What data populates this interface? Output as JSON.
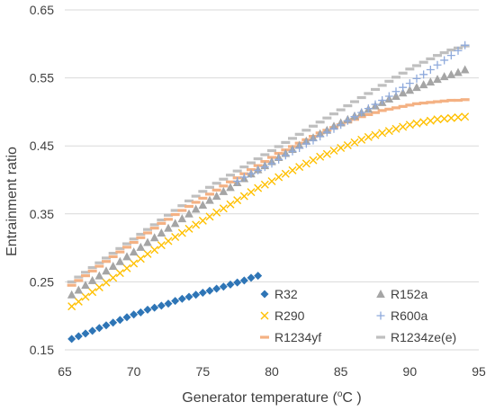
{
  "chart_data": {
    "type": "scatter",
    "title": "",
    "xlabel": "Generator temperature (",
    "xlabel_sup": "o",
    "xlabel_tail": "C )",
    "ylabel": "Entrainment ratio",
    "xlim": [
      65,
      95
    ],
    "ylim": [
      0.15,
      0.65
    ],
    "x_ticks": [
      "65",
      "70",
      "75",
      "80",
      "85",
      "90",
      "95"
    ],
    "y_ticks": [
      "0.15",
      "0.25",
      "0.35",
      "0.45",
      "0.55",
      "0.65"
    ],
    "grid": "horizontal",
    "legend_position": "inside-bottom-right",
    "series": [
      {
        "name": "R32",
        "marker": "diamond",
        "color": "#2e75b6",
        "x_start": 65.5,
        "x_step": 0.5,
        "values": [
          0.166,
          0.17,
          0.174,
          0.178,
          0.182,
          0.186,
          0.19,
          0.194,
          0.198,
          0.202,
          0.205,
          0.209,
          0.212,
          0.215,
          0.218,
          0.222,
          0.225,
          0.228,
          0.231,
          0.234,
          0.237,
          0.24,
          0.243,
          0.246,
          0.249,
          0.252,
          0.256,
          0.259
        ]
      },
      {
        "name": "R152a",
        "marker": "triangle",
        "color": "#a5a5a5",
        "x_start": 65.5,
        "x_step": 0.5,
        "values": [
          0.231,
          0.238,
          0.245,
          0.252,
          0.259,
          0.266,
          0.273,
          0.28,
          0.287,
          0.294,
          0.301,
          0.308,
          0.315,
          0.322,
          0.329,
          0.336,
          0.343,
          0.35,
          0.357,
          0.363,
          0.37,
          0.376,
          0.383,
          0.389,
          0.396,
          0.402,
          0.409,
          0.415,
          0.421,
          0.427,
          0.433,
          0.439,
          0.445,
          0.451,
          0.457,
          0.462,
          0.468,
          0.473,
          0.479,
          0.484,
          0.489,
          0.494,
          0.499,
          0.504,
          0.509,
          0.514,
          0.519,
          0.523,
          0.528,
          0.532,
          0.536,
          0.54,
          0.544,
          0.548,
          0.552,
          0.555,
          0.558,
          0.562
        ]
      },
      {
        "name": "R290",
        "marker": "x",
        "color": "#ffc000",
        "x_start": 65.5,
        "x_step": 0.5,
        "values": [
          0.214,
          0.221,
          0.228,
          0.235,
          0.242,
          0.249,
          0.256,
          0.263,
          0.27,
          0.277,
          0.284,
          0.291,
          0.297,
          0.304,
          0.31,
          0.316,
          0.322,
          0.328,
          0.334,
          0.34,
          0.346,
          0.352,
          0.358,
          0.364,
          0.37,
          0.376,
          0.382,
          0.388,
          0.393,
          0.398,
          0.404,
          0.409,
          0.414,
          0.419,
          0.424,
          0.429,
          0.434,
          0.438,
          0.443,
          0.447,
          0.451,
          0.455,
          0.459,
          0.463,
          0.466,
          0.469,
          0.472,
          0.475,
          0.478,
          0.481,
          0.483,
          0.485,
          0.487,
          0.489,
          0.49,
          0.491,
          0.492,
          0.493
        ]
      },
      {
        "name": "R600a",
        "marker": "plus",
        "color": "#8faadc",
        "x_start": 77.5,
        "x_step": 0.5,
        "values": [
          0.398,
          0.404,
          0.409,
          0.414,
          0.419,
          0.424,
          0.43,
          0.436,
          0.442,
          0.447,
          0.453,
          0.458,
          0.464,
          0.47,
          0.475,
          0.481,
          0.487,
          0.493,
          0.499,
          0.505,
          0.511,
          0.517,
          0.523,
          0.53,
          0.536,
          0.542,
          0.549,
          0.555,
          0.562,
          0.569,
          0.576,
          0.583,
          0.59,
          0.598
        ]
      },
      {
        "name": "R1234yf",
        "marker": "dash",
        "color": "#f4b183",
        "x_start": 65.5,
        "x_step": 0.5,
        "values": [
          0.245,
          0.252,
          0.259,
          0.266,
          0.273,
          0.28,
          0.287,
          0.294,
          0.301,
          0.308,
          0.315,
          0.322,
          0.329,
          0.336,
          0.342,
          0.349,
          0.355,
          0.361,
          0.367,
          0.373,
          0.379,
          0.385,
          0.391,
          0.397,
          0.403,
          0.409,
          0.415,
          0.421,
          0.427,
          0.433,
          0.439,
          0.444,
          0.449,
          0.454,
          0.459,
          0.464,
          0.469,
          0.473,
          0.477,
          0.481,
          0.485,
          0.489,
          0.493,
          0.496,
          0.499,
          0.502,
          0.504,
          0.506,
          0.508,
          0.51,
          0.512,
          0.513,
          0.514,
          0.515,
          0.516,
          0.517,
          0.517,
          0.518
        ]
      },
      {
        "name": "R1234ze(e)",
        "marker": "dash",
        "color": "#bfbfbf",
        "x_start": 65.5,
        "x_step": 0.5,
        "values": [
          0.25,
          0.257,
          0.264,
          0.271,
          0.278,
          0.285,
          0.292,
          0.299,
          0.306,
          0.313,
          0.32,
          0.327,
          0.334,
          0.341,
          0.348,
          0.355,
          0.362,
          0.369,
          0.376,
          0.383,
          0.389,
          0.395,
          0.401,
          0.407,
          0.413,
          0.419,
          0.425,
          0.431,
          0.437,
          0.443,
          0.449,
          0.455,
          0.461,
          0.467,
          0.473,
          0.479,
          0.485,
          0.491,
          0.497,
          0.503,
          0.509,
          0.515,
          0.521,
          0.527,
          0.533,
          0.539,
          0.545,
          0.551,
          0.557,
          0.563,
          0.568,
          0.573,
          0.578,
          0.583,
          0.587,
          0.591,
          0.594,
          0.597
        ]
      }
    ]
  }
}
